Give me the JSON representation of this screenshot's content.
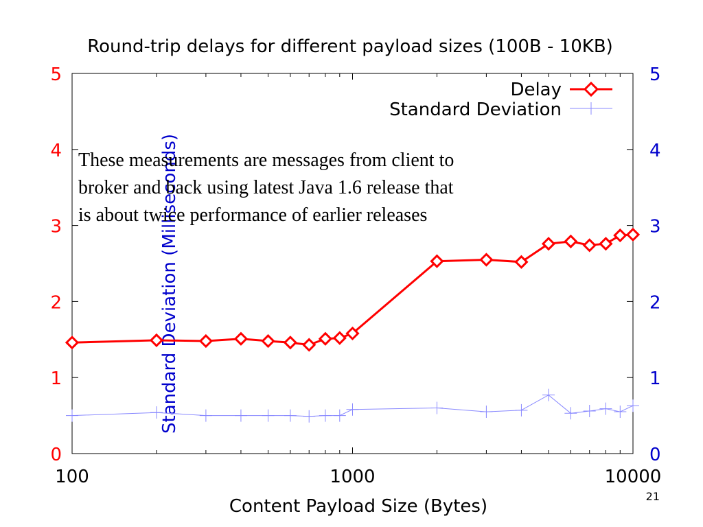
{
  "chart_data": {
    "type": "line",
    "title": "Round-trip delays for different payload sizes (100B - 10KB)",
    "xlabel": "Content Payload Size (Bytes)",
    "ylabel_right": "Standard Deviation (Milliseconds)",
    "x_scale": "log",
    "xlim": [
      100,
      10000
    ],
    "x_ticks": [
      "100",
      "1000",
      "10000"
    ],
    "ylim": [
      0,
      5
    ],
    "y_ticks": [
      "0",
      "1",
      "2",
      "3",
      "4",
      "5"
    ],
    "grid": false,
    "legend_position": "top-right",
    "x": [
      100,
      200,
      300,
      400,
      500,
      600,
      700,
      800,
      900,
      1000,
      2000,
      3000,
      4000,
      5000,
      6000,
      7000,
      8000,
      9000,
      10000
    ],
    "series": [
      {
        "name": "Delay",
        "color": "#ff0000",
        "marker": "diamond",
        "axis": "left",
        "values": [
          1.46,
          1.49,
          1.48,
          1.51,
          1.48,
          1.46,
          1.43,
          1.51,
          1.52,
          1.58,
          2.53,
          2.55,
          2.52,
          2.76,
          2.79,
          2.74,
          2.76,
          2.87,
          2.88
        ]
      },
      {
        "name": "Standard Deviation",
        "color": "#0000ff",
        "marker": "plus",
        "axis": "right",
        "values": [
          0.5,
          0.54,
          0.5,
          0.5,
          0.5,
          0.5,
          0.49,
          0.5,
          0.5,
          0.58,
          0.6,
          0.55,
          0.57,
          0.77,
          0.53,
          0.56,
          0.59,
          0.55,
          0.63
        ]
      }
    ]
  },
  "annotation": {
    "lines": [
      "These measurements are messages from client to",
      "broker and back using latest Java 1.6 release that",
      "is about twice performance of earlier releases"
    ]
  },
  "slide_number": "21",
  "colors": {
    "left_axis": "#ff0000",
    "right_axis": "#0000cc",
    "text": "#000000"
  }
}
